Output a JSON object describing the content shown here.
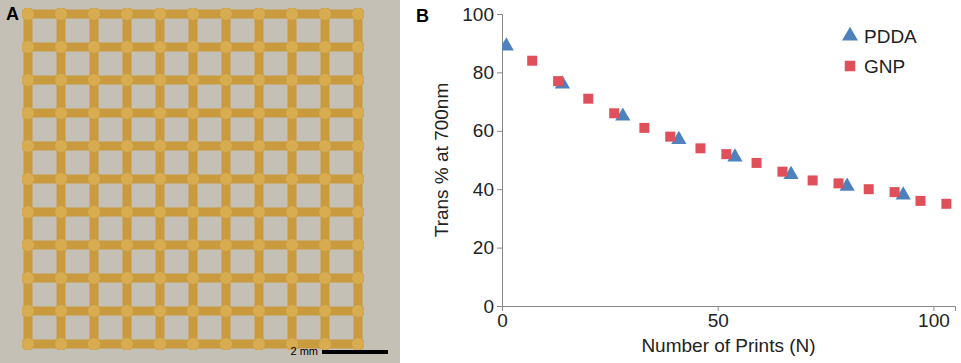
{
  "panel_a": {
    "label": "A",
    "scale_bar": "2 mm"
  },
  "chart_data": {
    "type": "scatter",
    "panel_label": "B",
    "x_label": "Number of Prints (N)",
    "y_label": "Trans % at 700nm",
    "xlim": [
      0,
      105
    ],
    "xticks": [
      0,
      50,
      100
    ],
    "ylim": [
      0,
      100
    ],
    "yticks": [
      0,
      20,
      40,
      60,
      80,
      100
    ],
    "grid": false,
    "legend": "upper right",
    "series": [
      {
        "name": "PDDA",
        "color": "#4f81bd",
        "marker": "triangle",
        "x": [
          1,
          14,
          28,
          41,
          54,
          67,
          80,
          93
        ],
        "values": [
          89,
          76,
          65,
          57,
          51,
          45,
          41,
          38
        ]
      },
      {
        "name": "GNP",
        "color": "#e0505a",
        "marker": "square",
        "x": [
          7,
          13,
          20,
          26,
          33,
          39,
          46,
          52,
          59,
          65,
          72,
          78,
          85,
          91,
          97,
          103
        ],
        "values": [
          84,
          77,
          71,
          66,
          61,
          58,
          54,
          52,
          49,
          46,
          43,
          42,
          40,
          39,
          36,
          35
        ]
      }
    ]
  }
}
